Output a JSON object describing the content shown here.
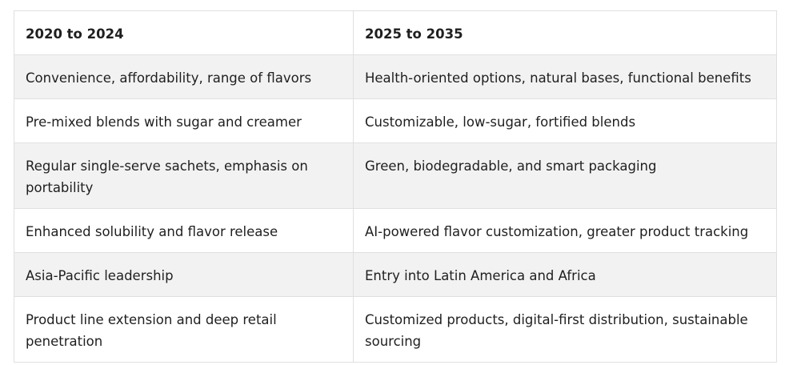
{
  "table": {
    "headers": [
      "2020 to 2024",
      "2025 to 2035"
    ],
    "rows": [
      [
        "Convenience, affordability, range of flavors",
        "Health-oriented options, natural bases, functional benefits"
      ],
      [
        "Pre-mixed blends with sugar and creamer",
        "Customizable, low-sugar, fortified blends"
      ],
      [
        "Regular single-serve sachets, emphasis on portability",
        "Green, biodegradable, and smart packaging"
      ],
      [
        "Enhanced solubility and flavor release",
        "AI-powered flavor customization, greater product tracking"
      ],
      [
        "Asia-Pacific leadership",
        "Entry into Latin America and Africa"
      ],
      [
        "Product line extension and deep retail penetration",
        "Customized products, digital-first distribution, sustainable sourcing"
      ]
    ]
  }
}
